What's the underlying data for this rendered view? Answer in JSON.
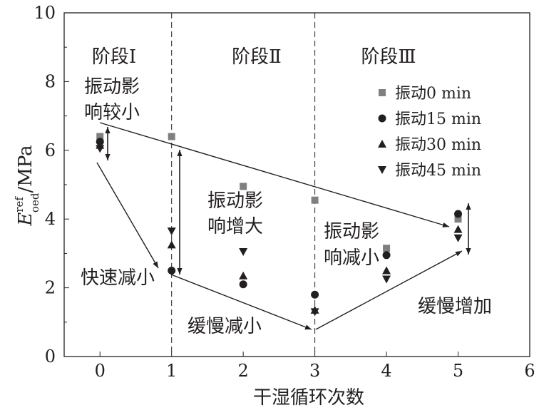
{
  "chart_data": {
    "type": "scatter",
    "xlabel": "干湿循环次数",
    "ylabel": {
      "main": "E",
      "sup": "ref",
      "sub": "oed",
      "unit": "/MPa"
    },
    "xlim": [
      -0.5,
      6
    ],
    "ylim": [
      0,
      10
    ],
    "xticks": [
      "0",
      "1",
      "2",
      "3",
      "4",
      "5",
      "6"
    ],
    "yticks": [
      "0",
      "2",
      "4",
      "6",
      "8",
      "10"
    ],
    "grid": false,
    "legend_position": "right",
    "x": [
      0,
      1,
      2,
      3,
      4,
      5
    ],
    "series": [
      {
        "name": "振动0 min",
        "marker": "square",
        "color": "#808080",
        "values": [
          6.4,
          6.4,
          4.95,
          4.55,
          3.15,
          4.0
        ]
      },
      {
        "name": "振动15 min",
        "marker": "circle",
        "color": "#231f20",
        "values": [
          6.25,
          2.5,
          2.1,
          1.8,
          2.95,
          4.15
        ]
      },
      {
        "name": "振动30 min",
        "marker": "triangle-up",
        "color": "#231f20",
        "values": [
          6.15,
          3.25,
          2.35,
          1.35,
          2.5,
          3.7
        ]
      },
      {
        "name": "振动45 min",
        "marker": "triangle-down",
        "color": "#231f20",
        "values": [
          6.05,
          3.65,
          3.05,
          1.3,
          2.25,
          3.45
        ]
      }
    ],
    "stage_dividers": [
      1,
      3
    ],
    "annotations": {
      "stages": [
        "阶段Ⅰ",
        "阶段Ⅱ",
        "阶段Ⅲ"
      ],
      "effect1": [
        "振动影",
        "响较小"
      ],
      "effect2": [
        "振动影",
        "响增大"
      ],
      "effect3": [
        "振动影",
        "响减小"
      ],
      "trend1": "快速减小",
      "trend2": "缓慢减小",
      "trend3": "缓慢增加"
    }
  }
}
